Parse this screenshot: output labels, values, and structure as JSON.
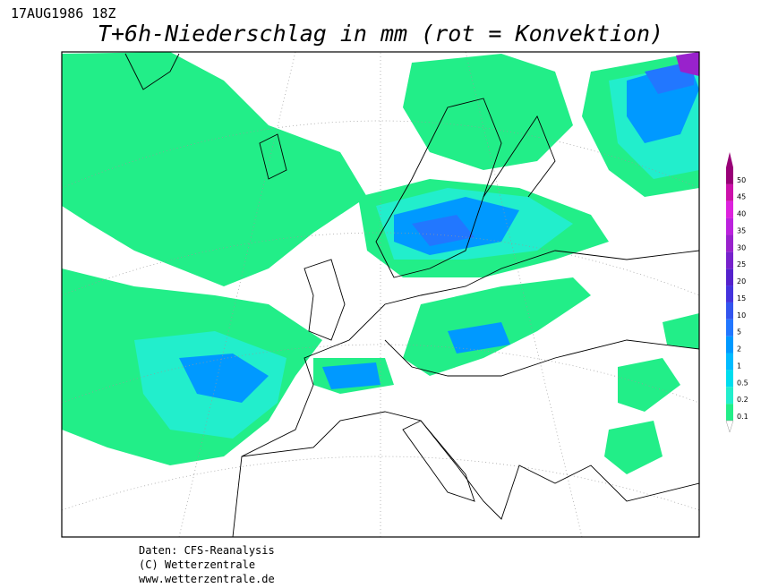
{
  "header": {
    "date": "17AUG1986 18Z",
    "title": "T+6h-Niederschlag in mm (rot = Konvektion)"
  },
  "legend": {
    "values": [
      0.1,
      0.2,
      0.5,
      1,
      2,
      5,
      10,
      15,
      20,
      25,
      30,
      35,
      40,
      45,
      50
    ],
    "colors": [
      "#22ee88",
      "#22eecc",
      "#00ddee",
      "#00bbff",
      "#0099ff",
      "#2277ff",
      "#3355ee",
      "#4433dd",
      "#5522cc",
      "#7722cc",
      "#9922cc",
      "#bb22dd",
      "#dd22dd",
      "#cc11aa",
      "#990077"
    ]
  },
  "footer": {
    "lines": [
      "Daten: CFS-Reanalysis",
      "(C) Wetterzentrale",
      "www.wetterzentrale.de"
    ]
  }
}
